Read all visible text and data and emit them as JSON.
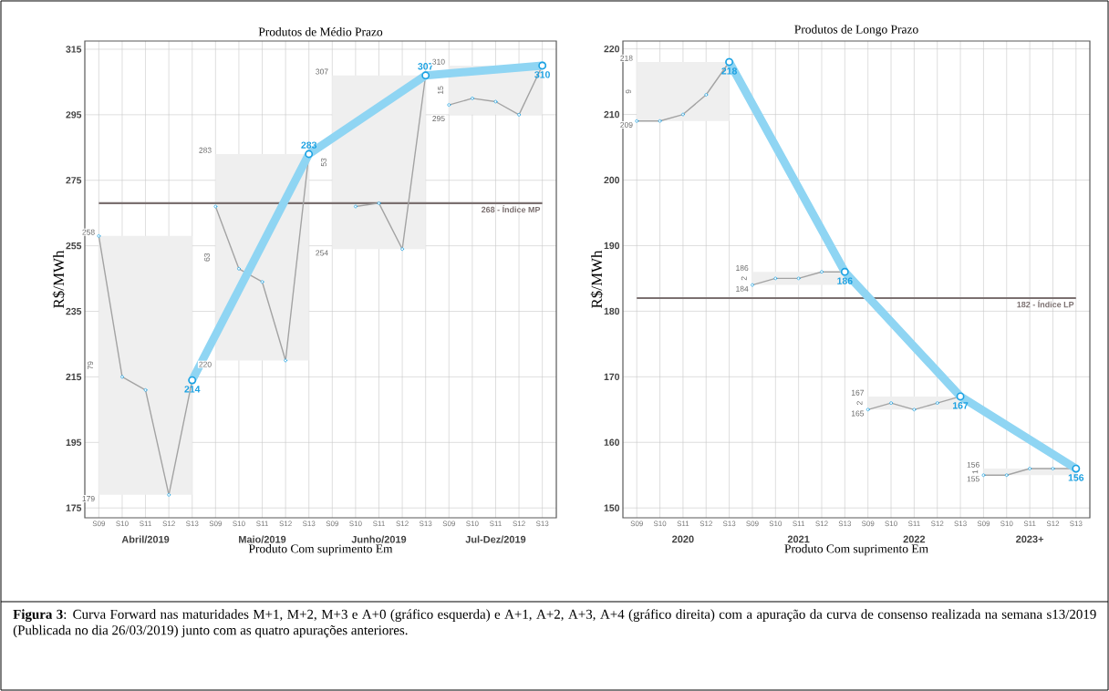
{
  "chart_data": [
    {
      "type": "line",
      "title": "Produtos de Médio Prazo",
      "xlabel": "Produto Com suprimento Em",
      "ylabel": "R$/MWh",
      "categories": [
        "S09",
        "S10",
        "S11",
        "S12",
        "S13",
        "S09",
        "S10",
        "S11",
        "S12",
        "S13",
        "S09",
        "S10",
        "S11",
        "S12",
        "S13",
        "S09",
        "S10",
        "S11",
        "S12",
        "S13"
      ],
      "ylim": [
        172,
        317.5
      ],
      "yticks": [
        175,
        195,
        215,
        235,
        255,
        275,
        295,
        315
      ],
      "grid": true,
      "marker": "circle",
      "series": [
        {
          "color": "#a3a3a3",
          "values": [
            258,
            215,
            211,
            179,
            214,
            null,
            null,
            null,
            null,
            null,
            null,
            null,
            null,
            null,
            null,
            null,
            null,
            null,
            null,
            null
          ],
          "lower": [
            179,
            179,
            179,
            179,
            179,
            null,
            null,
            null,
            null,
            null,
            null,
            null,
            null,
            null,
            null,
            null,
            null,
            null,
            null,
            null
          ],
          "upper": [
            258,
            258,
            258,
            258,
            258,
            null,
            null,
            null,
            null,
            null,
            null,
            null,
            null,
            null,
            null,
            null,
            null,
            null,
            null,
            null
          ]
        },
        {
          "color": "#a3a3a3",
          "values": [
            null,
            null,
            null,
            null,
            null,
            267,
            248,
            244,
            220,
            283,
            null,
            null,
            null,
            null,
            null,
            null,
            null,
            null,
            null,
            null
          ],
          "lower": [
            null,
            null,
            null,
            null,
            null,
            220,
            220,
            220,
            220,
            220,
            null,
            null,
            null,
            null,
            null,
            null,
            null,
            null,
            null,
            null
          ],
          "upper": [
            null,
            null,
            null,
            null,
            null,
            283,
            283,
            283,
            283,
            283,
            null,
            null,
            null,
            null,
            null,
            null,
            null,
            null,
            null,
            null
          ]
        },
        {
          "color": "#a3a3a3",
          "values": [
            null,
            null,
            null,
            null,
            null,
            null,
            null,
            null,
            null,
            null,
            null,
            267,
            268,
            254,
            307,
            null,
            null,
            null,
            null,
            null
          ],
          "lower": [
            null,
            null,
            null,
            null,
            null,
            null,
            null,
            null,
            null,
            null,
            254,
            254,
            254,
            254,
            254,
            null,
            null,
            null,
            null,
            null
          ],
          "upper": [
            null,
            null,
            null,
            null,
            null,
            null,
            null,
            null,
            null,
            null,
            307,
            307,
            307,
            307,
            307,
            null,
            null,
            null,
            null,
            null
          ]
        },
        {
          "color": "#a3a3a3",
          "values": [
            null,
            null,
            null,
            null,
            null,
            null,
            null,
            null,
            null,
            null,
            null,
            null,
            null,
            null,
            null,
            298,
            300,
            299,
            295,
            310
          ],
          "lower": [
            null,
            null,
            null,
            null,
            null,
            null,
            null,
            null,
            null,
            null,
            null,
            null,
            null,
            null,
            null,
            295,
            295,
            295,
            295,
            295
          ],
          "upper": [
            null,
            null,
            null,
            null,
            null,
            null,
            null,
            null,
            null,
            null,
            null,
            null,
            null,
            null,
            null,
            310,
            310,
            310,
            310,
            310
          ]
        },
        {
          "color": "#8fd5f3",
          "values": [
            null,
            null,
            null,
            null,
            214,
            null,
            null,
            null,
            null,
            283,
            null,
            null,
            null,
            null,
            307,
            null,
            null,
            null,
            null,
            310
          ],
          "value_labels": [
            null,
            null,
            null,
            null,
            "214",
            null,
            null,
            null,
            null,
            "283",
            null,
            null,
            null,
            null,
            "307",
            null,
            null,
            null,
            null,
            "310"
          ]
        }
      ],
      "ref_lines": [
        {
          "axis": "y",
          "value": 268,
          "label": "268 - Índice MP",
          "color": "#7b7070"
        }
      ],
      "annotations": [
        "258",
        "179",
        "283",
        "220",
        "307",
        "254",
        "310",
        "295",
        "79",
        "63",
        "53",
        "15",
        "Abril/2019",
        "Maio/2019",
        "Junho/2019",
        "Jul-Dez/2019",
        "**Figura 3**: Curva Forward nas maturidades M+1, M+2, M+3 e A+0 (gráfico esquerda) e A+1, A+2, A+3, A+4 (gráfico direita) com a apuração da curva de consenso realizada na semana s13/2019 (Publicada no dia 26/03/2019) junto com as quatro apurações anteriores."
      ]
    },
    {
      "type": "line",
      "title": "Produtos de Longo Prazo",
      "xlabel": "Produto Com suprimento Em",
      "ylabel": "R$/MWh",
      "categories": [
        "S09",
        "S10",
        "S11",
        "S12",
        "S13",
        "S09",
        "S10",
        "S11",
        "S12",
        "S13",
        "S09",
        "S10",
        "S11",
        "S12",
        "S13",
        "S09",
        "S10",
        "S11",
        "S12",
        "S13"
      ],
      "ylim": [
        148.5,
        221.2
      ],
      "yticks": [
        150,
        160,
        170,
        180,
        190,
        200,
        210,
        220
      ],
      "grid": true,
      "marker": "circle",
      "series": [
        {
          "color": "#a3a3a3",
          "values": [
            209,
            209,
            210,
            213,
            218,
            null,
            null,
            null,
            null,
            null,
            null,
            null,
            null,
            null,
            null,
            null,
            null,
            null,
            null,
            null
          ],
          "lower": [
            209,
            209,
            209,
            209,
            209,
            null,
            null,
            null,
            null,
            null,
            null,
            null,
            null,
            null,
            null,
            null,
            null,
            null,
            null,
            null
          ],
          "upper": [
            218,
            218,
            218,
            218,
            218,
            null,
            null,
            null,
            null,
            null,
            null,
            null,
            null,
            null,
            null,
            null,
            null,
            null,
            null,
            null
          ]
        },
        {
          "color": "#a3a3a3",
          "values": [
            null,
            null,
            null,
            null,
            null,
            184,
            185,
            185,
            186,
            186,
            null,
            null,
            null,
            null,
            null,
            null,
            null,
            null,
            null,
            null
          ],
          "lower": [
            null,
            null,
            null,
            null,
            null,
            184,
            184,
            184,
            184,
            184,
            null,
            null,
            null,
            null,
            null,
            null,
            null,
            null,
            null,
            null
          ],
          "upper": [
            null,
            null,
            null,
            null,
            null,
            186,
            186,
            186,
            186,
            186,
            null,
            null,
            null,
            null,
            null,
            null,
            null,
            null,
            null,
            null
          ]
        },
        {
          "color": "#a3a3a3",
          "values": [
            null,
            null,
            null,
            null,
            null,
            null,
            null,
            null,
            null,
            null,
            165,
            166,
            165,
            166,
            167,
            null,
            null,
            null,
            null,
            null
          ],
          "lower": [
            null,
            null,
            null,
            null,
            null,
            null,
            null,
            null,
            null,
            null,
            165,
            165,
            165,
            165,
            165,
            null,
            null,
            null,
            null,
            null
          ],
          "upper": [
            null,
            null,
            null,
            null,
            null,
            null,
            null,
            null,
            null,
            null,
            167,
            167,
            167,
            167,
            167,
            null,
            null,
            null,
            null,
            null
          ]
        },
        {
          "color": "#a3a3a3",
          "values": [
            null,
            null,
            null,
            null,
            null,
            null,
            null,
            null,
            null,
            null,
            null,
            null,
            null,
            null,
            null,
            155,
            155,
            156,
            156,
            156
          ],
          "lower": [
            null,
            null,
            null,
            null,
            null,
            null,
            null,
            null,
            null,
            null,
            null,
            null,
            null,
            null,
            null,
            155,
            155,
            155,
            155,
            155
          ],
          "upper": [
            null,
            null,
            null,
            null,
            null,
            null,
            null,
            null,
            null,
            null,
            null,
            null,
            null,
            null,
            null,
            156,
            156,
            156,
            156,
            156
          ]
        },
        {
          "color": "#8fd5f3",
          "values": [
            null,
            null,
            null,
            null,
            218,
            null,
            null,
            null,
            null,
            186,
            null,
            null,
            null,
            null,
            167,
            null,
            null,
            null,
            null,
            156
          ],
          "value_labels": [
            null,
            null,
            null,
            null,
            "218",
            null,
            null,
            null,
            null,
            "186",
            null,
            null,
            null,
            null,
            "167",
            null,
            null,
            null,
            null,
            "156"
          ]
        }
      ],
      "ref_lines": [
        {
          "axis": "y",
          "value": 182,
          "label": "182 - Índice LP",
          "color": "#7b7070"
        }
      ],
      "annotations": [
        "218",
        "209",
        "186",
        "184",
        "167",
        "165",
        "156",
        "155",
        "9",
        "2",
        "2",
        "1",
        "2020",
        "2021",
        "2022",
        "2023+"
      ]
    }
  ]
}
